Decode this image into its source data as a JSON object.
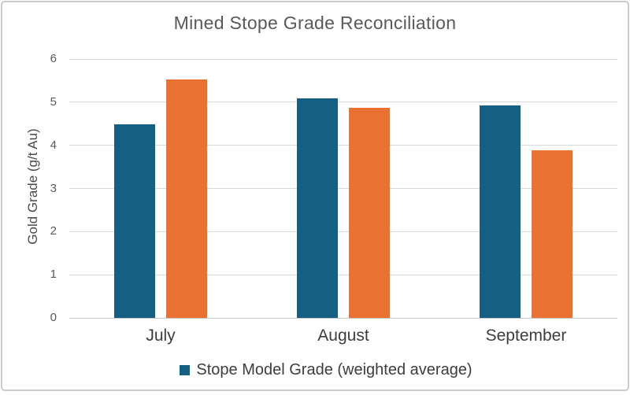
{
  "frame": {
    "background": "#ffffff",
    "border_color": "#cbcbcb"
  },
  "chart_data": {
    "type": "bar",
    "title": "Mined Stope Grade Reconciliation",
    "xlabel": "",
    "ylabel": "Gold Grade (g/t Au)",
    "ylim": [
      0,
      6
    ],
    "yticks": [
      0,
      1,
      2,
      3,
      4,
      5,
      6
    ],
    "grid": true,
    "categories": [
      "July",
      "August",
      "September"
    ],
    "series": [
      {
        "name": "Stope Model Grade (weighted average)",
        "color": "#156082",
        "values": [
          4.48,
          5.08,
          4.92
        ],
        "in_legend": true
      },
      {
        "name": "",
        "color": "#E97132",
        "values": [
          5.52,
          4.87,
          3.88
        ],
        "in_legend": false
      }
    ],
    "legend": {
      "position": "bottom",
      "entries": [
        {
          "label": "Stope Model Grade (weighted average)",
          "color": "#156082"
        }
      ]
    },
    "text_colors": {
      "title": "#595959",
      "axis_ticks": "#595959",
      "axis_title": "#4a4a4a",
      "category_labels": "#3d3d3d",
      "gridline": "#d9d9d9"
    }
  }
}
